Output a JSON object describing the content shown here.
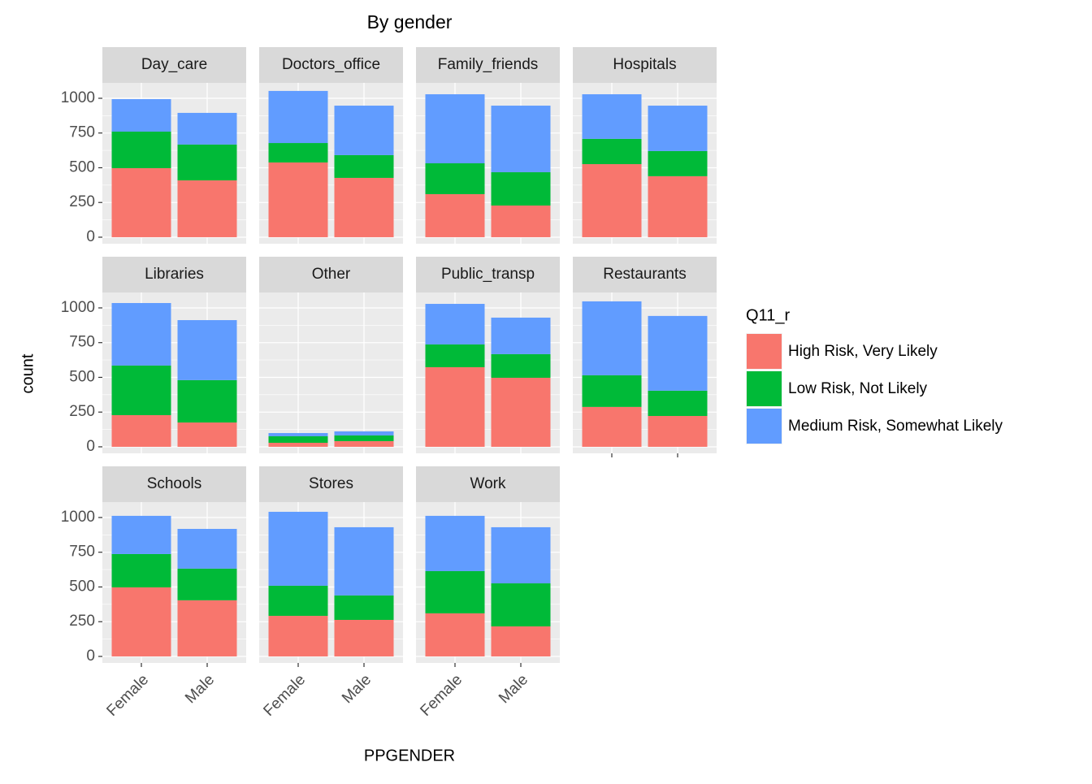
{
  "chart_data": {
    "type": "bar",
    "stacked": true,
    "title": "By gender",
    "x_label": "PPGENDER",
    "y_label": "count",
    "legend_title": "Q11_r",
    "categories": [
      "Female",
      "Male"
    ],
    "series": [
      {
        "name": "High Risk, Very Likely",
        "color": "#f8766d"
      },
      {
        "name": "Low Risk, Not Likely",
        "color": "#00ba38"
      },
      {
        "name": "Medium Risk, Somewhat Likely",
        "color": "#619cff"
      }
    ],
    "ylim": [
      -47,
      1111
    ],
    "yticks": [
      0,
      250,
      500,
      750,
      1000
    ],
    "grid": true,
    "facets": [
      {
        "label": "Day_care",
        "values": [
          [
            497,
            409
          ],
          [
            263,
            258
          ],
          [
            234,
            228
          ]
        ]
      },
      {
        "label": "Doctors_office",
        "values": [
          [
            538,
            427
          ],
          [
            140,
            164
          ],
          [
            375,
            356
          ]
        ]
      },
      {
        "label": "Family_friends",
        "values": [
          [
            310,
            228
          ],
          [
            222,
            240
          ],
          [
            497,
            479
          ]
        ]
      },
      {
        "label": "Hospitals",
        "values": [
          [
            526,
            439
          ],
          [
            182,
            181
          ],
          [
            321,
            327
          ]
        ]
      },
      {
        "label": "Libraries",
        "values": [
          [
            228,
            175
          ],
          [
            357,
            305
          ],
          [
            450,
            432
          ]
        ]
      },
      {
        "label": "Other",
        "values": [
          [
            29,
            41
          ],
          [
            47,
            41
          ],
          [
            23,
            29
          ]
        ]
      },
      {
        "label": "Public_transp",
        "values": [
          [
            573,
            497
          ],
          [
            164,
            170
          ],
          [
            292,
            263
          ]
        ]
      },
      {
        "label": "Restaurants",
        "values": [
          [
            287,
            222
          ],
          [
            228,
            182
          ],
          [
            532,
            538
          ]
        ]
      },
      {
        "label": "Schools",
        "values": [
          [
            497,
            404
          ],
          [
            240,
            228
          ],
          [
            275,
            286
          ]
        ]
      },
      {
        "label": "Stores",
        "values": [
          [
            292,
            263
          ],
          [
            217,
            176
          ],
          [
            532,
            491
          ]
        ]
      },
      {
        "label": "Work",
        "values": [
          [
            310,
            216
          ],
          [
            304,
            310
          ],
          [
            398,
            404
          ]
        ]
      }
    ]
  }
}
